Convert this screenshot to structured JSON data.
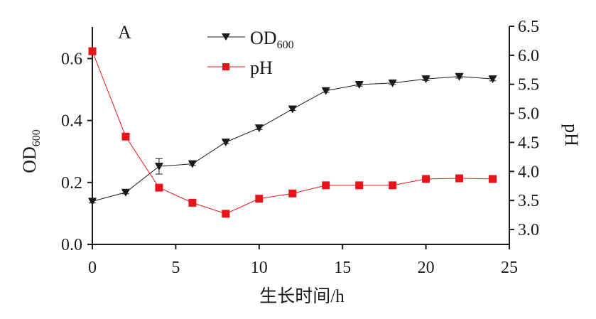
{
  "chart_data": {
    "type": "line",
    "panel_label": "A",
    "x": [
      0,
      2,
      4,
      6,
      8,
      10,
      12,
      14,
      16,
      18,
      20,
      22,
      24
    ],
    "xlabel": "生长时间/h",
    "xlim": [
      0,
      25
    ],
    "xticks": [
      "0",
      "5",
      "10",
      "15",
      "20",
      "25"
    ],
    "ylabel_left": {
      "main": "OD",
      "sub": "600"
    },
    "ylim_left": [
      0,
      0.7
    ],
    "yticks_left": [
      "0.0",
      "0.2",
      "0.4",
      "0.6"
    ],
    "ylabel_right": "pH",
    "ylim_right": [
      2.7,
      6.5
    ],
    "yticks_right": [
      "3.0",
      "3.5",
      "4.0",
      "4.5",
      "5.0",
      "5.5",
      "6.0",
      "6.5"
    ],
    "series": [
      {
        "name": "OD",
        "name_sub": "600",
        "axis": "left",
        "color": "#1a1a1a",
        "marker": "triangle-down",
        "values": [
          0.139,
          0.168,
          0.252,
          0.26,
          0.33,
          0.376,
          0.437,
          0.496,
          0.516,
          0.521,
          0.534,
          0.542,
          0.534
        ],
        "errors": [
          0.005,
          0.005,
          0.025,
          0.005,
          0.005,
          0.005,
          0.005,
          0.005,
          0.005,
          0.005,
          0.005,
          0.005,
          0.006
        ]
      },
      {
        "name": "pH",
        "axis": "right",
        "color": "#e8141c",
        "marker": "square",
        "values": [
          6.07,
          4.6,
          3.72,
          3.46,
          3.27,
          3.53,
          3.62,
          3.76,
          3.76,
          3.76,
          3.87,
          3.88,
          3.87
        ],
        "errors": [
          0.03,
          0.04,
          0.02,
          0.02,
          0.02,
          0.02,
          0.02,
          0.02,
          0.02,
          0.02,
          0.02,
          0.02,
          0.02
        ]
      }
    ],
    "legend_position": "top-center"
  }
}
